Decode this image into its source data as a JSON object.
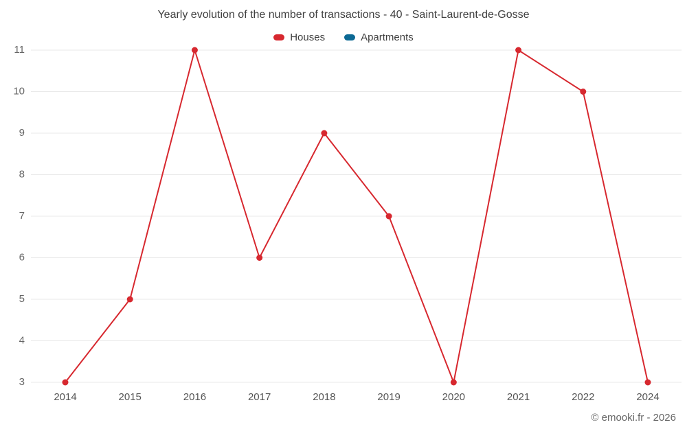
{
  "title": "Yearly evolution of the number of transactions - 40 - Saint-Laurent-de-Gosse",
  "legend": [
    {
      "label": "Houses",
      "color": "#d7282f"
    },
    {
      "label": "Apartments",
      "color": "#0c6994"
    }
  ],
  "footer": "© emooki.fr - 2026",
  "colors": {
    "grid": "#e8e8e8",
    "y_tick_text": "#666666",
    "x_tick_text": "#555555",
    "title_text": "#3f3f3f"
  },
  "chart_data": {
    "type": "line",
    "title": "Yearly evolution of the number of transactions - 40 - Saint-Laurent-de-Gosse",
    "categories": [
      "2014",
      "2015",
      "2016",
      "2017",
      "2018",
      "2019",
      "2020",
      "2021",
      "2022",
      "2024"
    ],
    "series": [
      {
        "name": "Houses",
        "color": "#d7282f",
        "values": [
          3,
          5,
          11,
          6,
          9,
          7,
          3,
          11,
          10,
          3
        ]
      },
      {
        "name": "Apartments",
        "color": "#0c6994",
        "values": []
      }
    ],
    "xlabel": "",
    "ylabel": "",
    "ylim": [
      3,
      11
    ],
    "yticks": [
      3,
      4,
      5,
      6,
      7,
      8,
      9,
      10,
      11
    ],
    "grid": true,
    "legend_position": "top",
    "marker": "circle",
    "marker_radius": 4.5,
    "line_width": 2
  }
}
